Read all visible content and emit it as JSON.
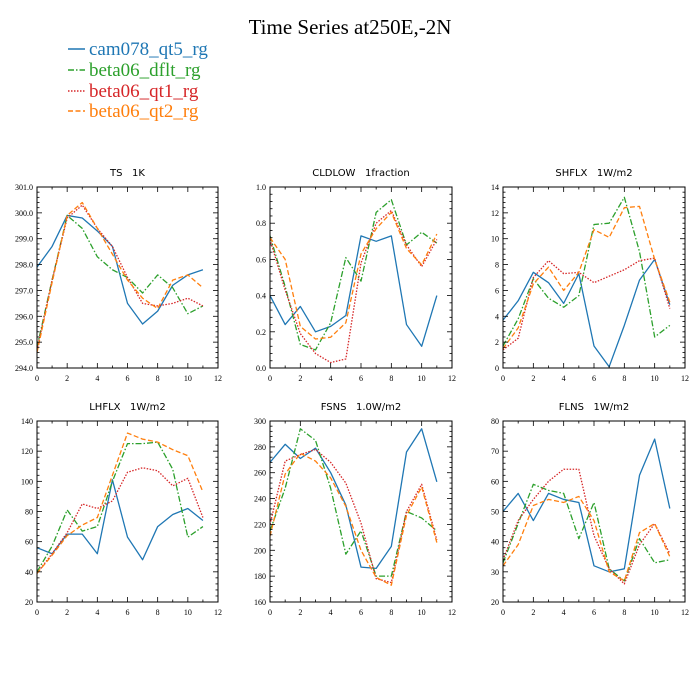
{
  "figure": {
    "title": "Time Series at250E,-2N"
  },
  "legend": {
    "placement": "top-left",
    "entries": [
      {
        "name": "cam078_qt5_rg",
        "color": "#1f77b4",
        "dash": "solid"
      },
      {
        "name": "beta06_dflt_rg",
        "color": "#2ca02c",
        "dash": "dashdot"
      },
      {
        "name": "beta06_qt1_rg",
        "color": "#d62728",
        "dash": "dotted"
      },
      {
        "name": "beta06_qt2_rg",
        "color": "#ff7f0e",
        "dash": "dashed"
      }
    ]
  },
  "chart_data": [
    {
      "type": "line",
      "title": "TS   1K",
      "x": [
        0,
        1,
        2,
        3,
        4,
        5,
        6,
        7,
        8,
        9,
        10,
        11
      ],
      "xlim": [
        0,
        12
      ],
      "xticks": [
        "0",
        "2",
        "4",
        "6",
        "8",
        "10",
        "12"
      ],
      "ylim": [
        294,
        301
      ],
      "yticks": [
        "294.0",
        "295.0",
        "296.0",
        "297.0",
        "298.0",
        "299.0",
        "300.0",
        "301.0"
      ],
      "series": [
        {
          "name": "cam078_qt5_rg",
          "values": [
            297.9,
            298.7,
            299.9,
            299.8,
            299.3,
            298.7,
            296.5,
            295.7,
            296.2,
            297.2,
            297.6,
            297.8
          ]
        },
        {
          "name": "beta06_dflt_rg",
          "values": [
            294.8,
            297.4,
            299.9,
            299.4,
            298.3,
            297.8,
            297.5,
            296.9,
            297.6,
            297.1,
            296.1,
            296.4
          ]
        },
        {
          "name": "beta06_qt1_rg",
          "values": [
            294.7,
            297.4,
            299.8,
            300.3,
            299.4,
            298.7,
            297.5,
            296.5,
            296.4,
            296.5,
            296.7,
            296.4
          ]
        },
        {
          "name": "beta06_qt2_rg",
          "values": [
            294.6,
            297.3,
            299.9,
            300.4,
            299.4,
            298.4,
            297.4,
            296.7,
            296.3,
            297.4,
            297.6,
            297.1
          ]
        }
      ]
    },
    {
      "type": "line",
      "title": "CLDLOW   1fraction",
      "x": [
        0,
        1,
        2,
        3,
        4,
        5,
        6,
        7,
        8,
        9,
        10,
        11
      ],
      "xlim": [
        0,
        12
      ],
      "xticks": [
        "0",
        "2",
        "4",
        "6",
        "8",
        "10",
        "12"
      ],
      "ylim": [
        0,
        1
      ],
      "yticks": [
        "0.0",
        "0.2",
        "0.4",
        "0.6",
        "0.8",
        "1.0"
      ],
      "series": [
        {
          "name": "cam078_qt5_rg",
          "values": [
            0.4,
            0.24,
            0.34,
            0.2,
            0.23,
            0.29,
            0.73,
            0.7,
            0.73,
            0.24,
            0.12,
            0.4
          ]
        },
        {
          "name": "beta06_dflt_rg",
          "values": [
            0.73,
            0.45,
            0.13,
            0.1,
            0.25,
            0.61,
            0.48,
            0.86,
            0.93,
            0.68,
            0.75,
            0.69
          ]
        },
        {
          "name": "beta06_qt1_rg",
          "values": [
            0.71,
            0.43,
            0.19,
            0.08,
            0.03,
            0.05,
            0.58,
            0.8,
            0.87,
            0.68,
            0.56,
            0.71
          ]
        },
        {
          "name": "beta06_qt2_rg",
          "values": [
            0.72,
            0.6,
            0.23,
            0.16,
            0.17,
            0.25,
            0.63,
            0.77,
            0.86,
            0.66,
            0.57,
            0.74
          ]
        }
      ]
    },
    {
      "type": "line",
      "title": "SHFLX   1W/m2",
      "x": [
        0,
        1,
        2,
        3,
        4,
        5,
        6,
        7,
        8,
        9,
        10,
        11
      ],
      "xlim": [
        0,
        12
      ],
      "xticks": [
        "0",
        "2",
        "4",
        "6",
        "8",
        "10",
        "12"
      ],
      "ylim": [
        0,
        14
      ],
      "yticks": [
        "0",
        "2",
        "4",
        "6",
        "8",
        "10",
        "12",
        "14"
      ],
      "series": [
        {
          "name": "cam078_qt5_rg",
          "values": [
            3.7,
            5.2,
            7.4,
            6.6,
            5.0,
            7.3,
            1.7,
            0.1,
            3.3,
            6.8,
            8.4,
            4.9
          ]
        },
        {
          "name": "beta06_dflt_rg",
          "values": [
            1.7,
            3.8,
            6.9,
            5.4,
            4.7,
            5.6,
            11.1,
            11.2,
            13.2,
            9.0,
            2.4,
            3.3
          ]
        },
        {
          "name": "beta06_qt1_rg",
          "values": [
            1.4,
            2.3,
            7.0,
            8.3,
            7.3,
            7.4,
            6.6,
            7.1,
            7.6,
            8.3,
            8.5,
            4.6
          ]
        },
        {
          "name": "beta06_qt2_rg",
          "values": [
            1.5,
            3.1,
            6.5,
            7.8,
            6.0,
            7.4,
            10.7,
            10.1,
            12.4,
            12.5,
            8.4,
            5.1
          ]
        }
      ]
    },
    {
      "type": "line",
      "title": "LHFLX   1W/m2",
      "x": [
        0,
        1,
        2,
        3,
        4,
        5,
        6,
        7,
        8,
        9,
        10,
        11
      ],
      "xlim": [
        0,
        12
      ],
      "xticks": [
        "0",
        "2",
        "4",
        "6",
        "8",
        "10",
        "12"
      ],
      "ylim": [
        20,
        140
      ],
      "yticks": [
        "20",
        "40",
        "60",
        "80",
        "100",
        "120",
        "140"
      ],
      "series": [
        {
          "name": "cam078_qt5_rg",
          "values": [
            56,
            52,
            65,
            65,
            52,
            101,
            63,
            48,
            70,
            78,
            82,
            74
          ]
        },
        {
          "name": "beta06_dflt_rg",
          "values": [
            40,
            57,
            81,
            67,
            70,
            100,
            125,
            125,
            126,
            108,
            63,
            70
          ]
        },
        {
          "name": "beta06_qt1_rg",
          "values": [
            39,
            52,
            66,
            85,
            82,
            87,
            106,
            109,
            107,
            97,
            102,
            76
          ]
        },
        {
          "name": "beta06_qt2_rg",
          "values": [
            39,
            51,
            64,
            71,
            76,
            104,
            132,
            128,
            126,
            121,
            117,
            93
          ]
        }
      ]
    },
    {
      "type": "line",
      "title": "FSNS   1.0W/m2",
      "x": [
        0,
        1,
        2,
        3,
        4,
        5,
        6,
        7,
        8,
        9,
        10,
        11
      ],
      "xlim": [
        0,
        12
      ],
      "xticks": [
        "0",
        "2",
        "4",
        "6",
        "8",
        "10",
        "12"
      ],
      "ylim": [
        160,
        300
      ],
      "yticks": [
        "160",
        "180",
        "200",
        "220",
        "240",
        "260",
        "280",
        "300"
      ],
      "series": [
        {
          "name": "cam078_qt5_rg",
          "values": [
            268,
            282,
            271,
            279,
            260,
            235,
            187,
            186,
            203,
            276,
            294,
            253
          ]
        },
        {
          "name": "beta06_dflt_rg",
          "values": [
            215,
            248,
            294,
            285,
            248,
            197,
            215,
            180,
            180,
            230,
            225,
            215
          ]
        },
        {
          "name": "beta06_qt1_rg",
          "values": [
            220,
            269,
            274,
            278,
            268,
            252,
            221,
            178,
            175,
            230,
            251,
            208
          ]
        },
        {
          "name": "beta06_qt2_rg",
          "values": [
            211,
            259,
            275,
            269,
            256,
            234,
            200,
            179,
            173,
            227,
            249,
            206
          ]
        }
      ]
    },
    {
      "type": "line",
      "title": "FLNS   1W/m2",
      "x": [
        0,
        1,
        2,
        3,
        4,
        5,
        6,
        7,
        8,
        9,
        10,
        11
      ],
      "xlim": [
        0,
        12
      ],
      "xticks": [
        "0",
        "2",
        "4",
        "6",
        "8",
        "10",
        "12"
      ],
      "ylim": [
        20,
        80
      ],
      "yticks": [
        "20",
        "30",
        "40",
        "50",
        "60",
        "70",
        "80"
      ],
      "series": [
        {
          "name": "cam078_qt5_rg",
          "values": [
            50,
            56,
            47,
            56,
            54,
            53,
            32,
            30,
            31,
            62,
            74,
            51
          ]
        },
        {
          "name": "beta06_dflt_rg",
          "values": [
            33,
            46,
            59,
            57,
            56,
            41,
            53,
            31,
            27,
            41,
            33,
            34
          ]
        },
        {
          "name": "beta06_qt1_rg",
          "values": [
            34,
            47,
            54,
            60,
            64,
            64,
            42,
            31,
            26,
            39,
            46,
            36
          ]
        },
        {
          "name": "beta06_qt2_rg",
          "values": [
            32,
            39,
            52,
            54,
            53,
            55,
            47,
            30,
            27,
            43,
            46,
            35
          ]
        }
      ]
    }
  ]
}
